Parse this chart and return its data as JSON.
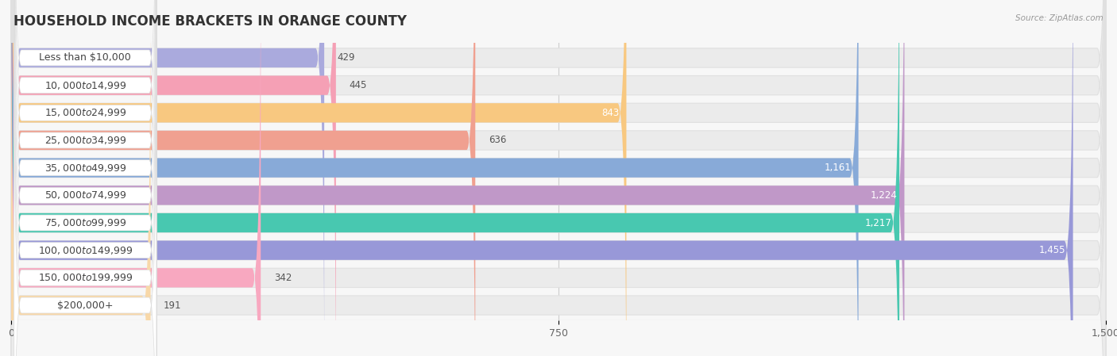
{
  "title": "HOUSEHOLD INCOME BRACKETS IN ORANGE COUNTY",
  "source": "Source: ZipAtlas.com",
  "categories": [
    "Less than $10,000",
    "$10,000 to $14,999",
    "$15,000 to $24,999",
    "$25,000 to $34,999",
    "$35,000 to $49,999",
    "$50,000 to $74,999",
    "$75,000 to $99,999",
    "$100,000 to $149,999",
    "$150,000 to $199,999",
    "$200,000+"
  ],
  "values": [
    429,
    445,
    843,
    636,
    1161,
    1224,
    1217,
    1455,
    342,
    191
  ],
  "bar_colors": [
    "#aaaadd",
    "#f5a0b5",
    "#f8c880",
    "#f0a090",
    "#88aad8",
    "#c098c8",
    "#48c8b0",
    "#9898d8",
    "#f8a8c0",
    "#f8d8a8"
  ],
  "xlim": [
    0,
    1500
  ],
  "xticks": [
    0,
    750,
    1500
  ],
  "bg_color": "#f7f7f7",
  "row_bg_color": "#ebebeb",
  "row_bg_border": "#e0e0e0",
  "label_pill_color": "#ffffff",
  "title_fontsize": 12,
  "label_fontsize": 9,
  "value_fontsize": 8.5,
  "tick_fontsize": 9
}
